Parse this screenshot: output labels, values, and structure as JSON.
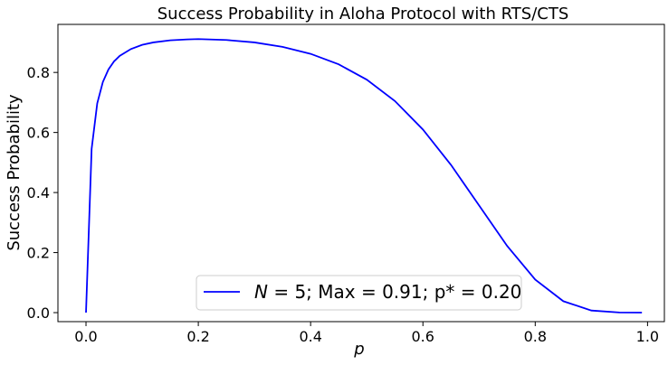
{
  "chart_data": {
    "type": "line",
    "title": "Success Probability in Aloha Protocol with RTS/CTS",
    "xlabel": "p",
    "ylabel": "Success Probability",
    "xlim": [
      -0.05,
      1.03
    ],
    "ylim": [
      -0.03,
      0.96
    ],
    "xticks": [
      0.0,
      0.2,
      0.4,
      0.6,
      0.8,
      1.0
    ],
    "xtick_labels": [
      "0.0",
      "0.2",
      "0.4",
      "0.6",
      "0.8",
      "1.0"
    ],
    "yticks": [
      0.0,
      0.2,
      0.4,
      0.6,
      0.8
    ],
    "ytick_labels": [
      "0.0",
      "0.2",
      "0.4",
      "0.6",
      "0.8"
    ],
    "grid": false,
    "legend_position": "lower-center",
    "series": [
      {
        "name_italic": "N",
        "name_rest": " = 5; Max = 0.91; p* = 0.20",
        "color": "#0000ff",
        "x": [
          0.0,
          0.01,
          0.02,
          0.03,
          0.04,
          0.05,
          0.06,
          0.08,
          0.1,
          0.12,
          0.15,
          0.18,
          0.2,
          0.25,
          0.3,
          0.35,
          0.4,
          0.45,
          0.5,
          0.55,
          0.6,
          0.65,
          0.7,
          0.75,
          0.8,
          0.85,
          0.9,
          0.95,
          0.99
        ],
        "y": [
          0.0,
          0.545,
          0.697,
          0.768,
          0.81,
          0.837,
          0.855,
          0.878,
          0.892,
          0.9,
          0.907,
          0.91,
          0.911,
          0.908,
          0.9,
          0.885,
          0.862,
          0.827,
          0.776,
          0.705,
          0.61,
          0.492,
          0.357,
          0.222,
          0.11,
          0.038,
          0.007,
          0.0005,
          0.0
        ]
      }
    ]
  }
}
